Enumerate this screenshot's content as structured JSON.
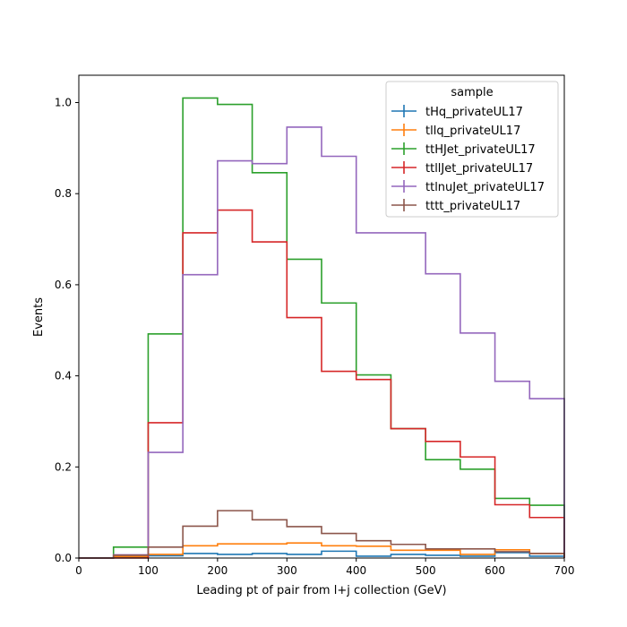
{
  "chart_data": {
    "type": "step",
    "title": "",
    "xlabel": "Leading pt of pair from l+j collection (GeV)",
    "ylabel": "Events",
    "xlim": [
      0,
      700
    ],
    "ylim": [
      0,
      1.06
    ],
    "xticks": [
      0,
      100,
      200,
      300,
      400,
      500,
      600,
      700
    ],
    "yticks": [
      0.0,
      0.2,
      0.4,
      0.6,
      0.8,
      1.0
    ],
    "xtick_labels": [
      "0",
      "100",
      "200",
      "300",
      "400",
      "500",
      "600",
      "700"
    ],
    "ytick_labels": [
      "0.0",
      "0.2",
      "0.4",
      "0.6",
      "0.8",
      "1.0"
    ],
    "bin_edges": [
      0,
      50,
      100,
      150,
      200,
      250,
      300,
      350,
      400,
      450,
      500,
      550,
      600,
      650,
      700
    ],
    "grid": false,
    "legend": {
      "title": "sample",
      "position": "top-right"
    },
    "series": [
      {
        "name": "tHq_privateUL17",
        "color": "#1f77b4",
        "values": [
          0.0,
          0.002,
          0.005,
          0.01,
          0.008,
          0.01,
          0.008,
          0.015,
          0.004,
          0.008,
          0.006,
          0.004,
          0.012,
          0.004
        ]
      },
      {
        "name": "tllq_privateUL17",
        "color": "#ff7f0e",
        "values": [
          0.0,
          0.003,
          0.008,
          0.027,
          0.031,
          0.031,
          0.033,
          0.027,
          0.026,
          0.017,
          0.017,
          0.008,
          0.018,
          0.01
        ]
      },
      {
        "name": "ttHJet_privateUL17",
        "color": "#2ca02c",
        "values": [
          0.0,
          0.024,
          0.492,
          1.01,
          0.996,
          0.846,
          0.656,
          0.56,
          0.402,
          0.284,
          0.216,
          0.195,
          0.131,
          0.116
        ]
      },
      {
        "name": "ttllJet_privateUL17",
        "color": "#d62728",
        "values": [
          0.0,
          0.0,
          0.297,
          0.714,
          0.764,
          0.694,
          0.528,
          0.41,
          0.392,
          0.284,
          0.256,
          0.222,
          0.117,
          0.089
        ]
      },
      {
        "name": "ttlnuJet_privateUL17",
        "color": "#9467bd",
        "values": [
          0.0,
          0.007,
          0.232,
          0.622,
          0.872,
          0.866,
          0.946,
          0.882,
          0.714,
          0.714,
          0.624,
          0.494,
          0.388,
          0.35
        ]
      },
      {
        "name": "tttt_privateUL17",
        "color": "#8c564b",
        "values": [
          0.0,
          0.006,
          0.024,
          0.07,
          0.104,
          0.084,
          0.069,
          0.054,
          0.038,
          0.03,
          0.02,
          0.02,
          0.014,
          0.01
        ]
      }
    ]
  }
}
